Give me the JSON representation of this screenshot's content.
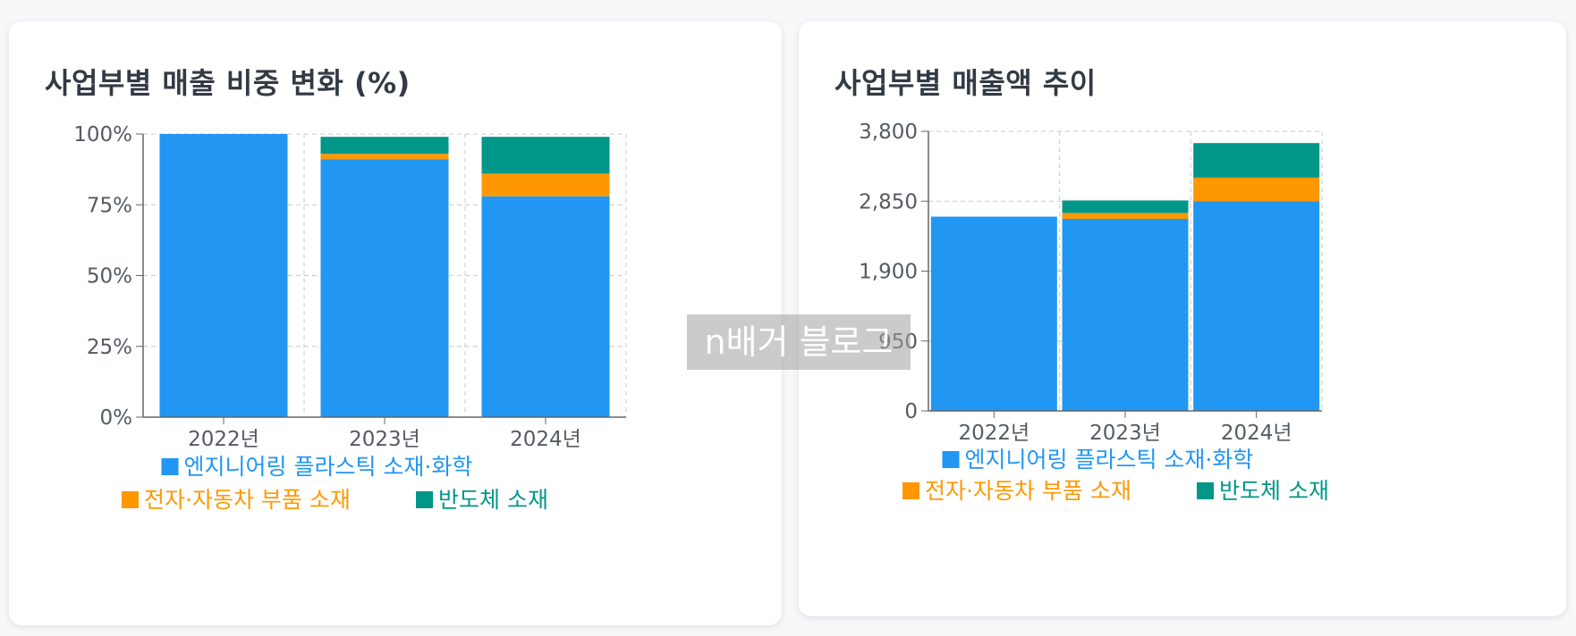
{
  "colors": {
    "engineering": "#2196f3",
    "electronics": "#ff9800",
    "semiconductor": "#009688",
    "grid": "#c8c8c8",
    "axis": "#666666"
  },
  "watermark": "n배거 블로그",
  "chart_data": [
    {
      "type": "bar",
      "stacked": true,
      "title": "사업부별 매출 비중 변화 (%)",
      "categories": [
        "2022년",
        "2023년",
        "2024년"
      ],
      "ylim": [
        0,
        100
      ],
      "yticks": [
        0,
        25,
        50,
        75,
        100
      ],
      "ytick_labels": [
        "0%",
        "25%",
        "50%",
        "75%",
        "100%"
      ],
      "series": [
        {
          "name": "엔지니어링 플라스틱 소재·화학",
          "key": "engineering",
          "values": [
            100,
            91,
            78
          ]
        },
        {
          "name": "전자·자동차 부품 소재",
          "key": "electronics",
          "values": [
            0,
            2,
            8
          ]
        },
        {
          "name": "반도체 소재",
          "key": "semiconductor",
          "values": [
            0,
            6,
            13
          ]
        }
      ],
      "grid": true,
      "legend": "bottom"
    },
    {
      "type": "bar",
      "stacked": true,
      "title": "사업부별 매출액 추이",
      "categories": [
        "2022년",
        "2023년",
        "2024년"
      ],
      "ylim": [
        0,
        3800
      ],
      "yticks": [
        0,
        950,
        1900,
        2850,
        3800
      ],
      "ytick_labels": [
        "0",
        "950",
        "1,900",
        "2,850",
        "3,800"
      ],
      "series": [
        {
          "name": "엔지니어링 플라스틱 소재·화학",
          "key": "engineering",
          "values": [
            2640,
            2610,
            2850
          ]
        },
        {
          "name": "전자·자동차 부품 소재",
          "key": "electronics",
          "values": [
            0,
            80,
            320
          ]
        },
        {
          "name": "반도체 소재",
          "key": "semiconductor",
          "values": [
            0,
            170,
            470
          ]
        }
      ],
      "grid": true,
      "legend": "bottom"
    }
  ]
}
